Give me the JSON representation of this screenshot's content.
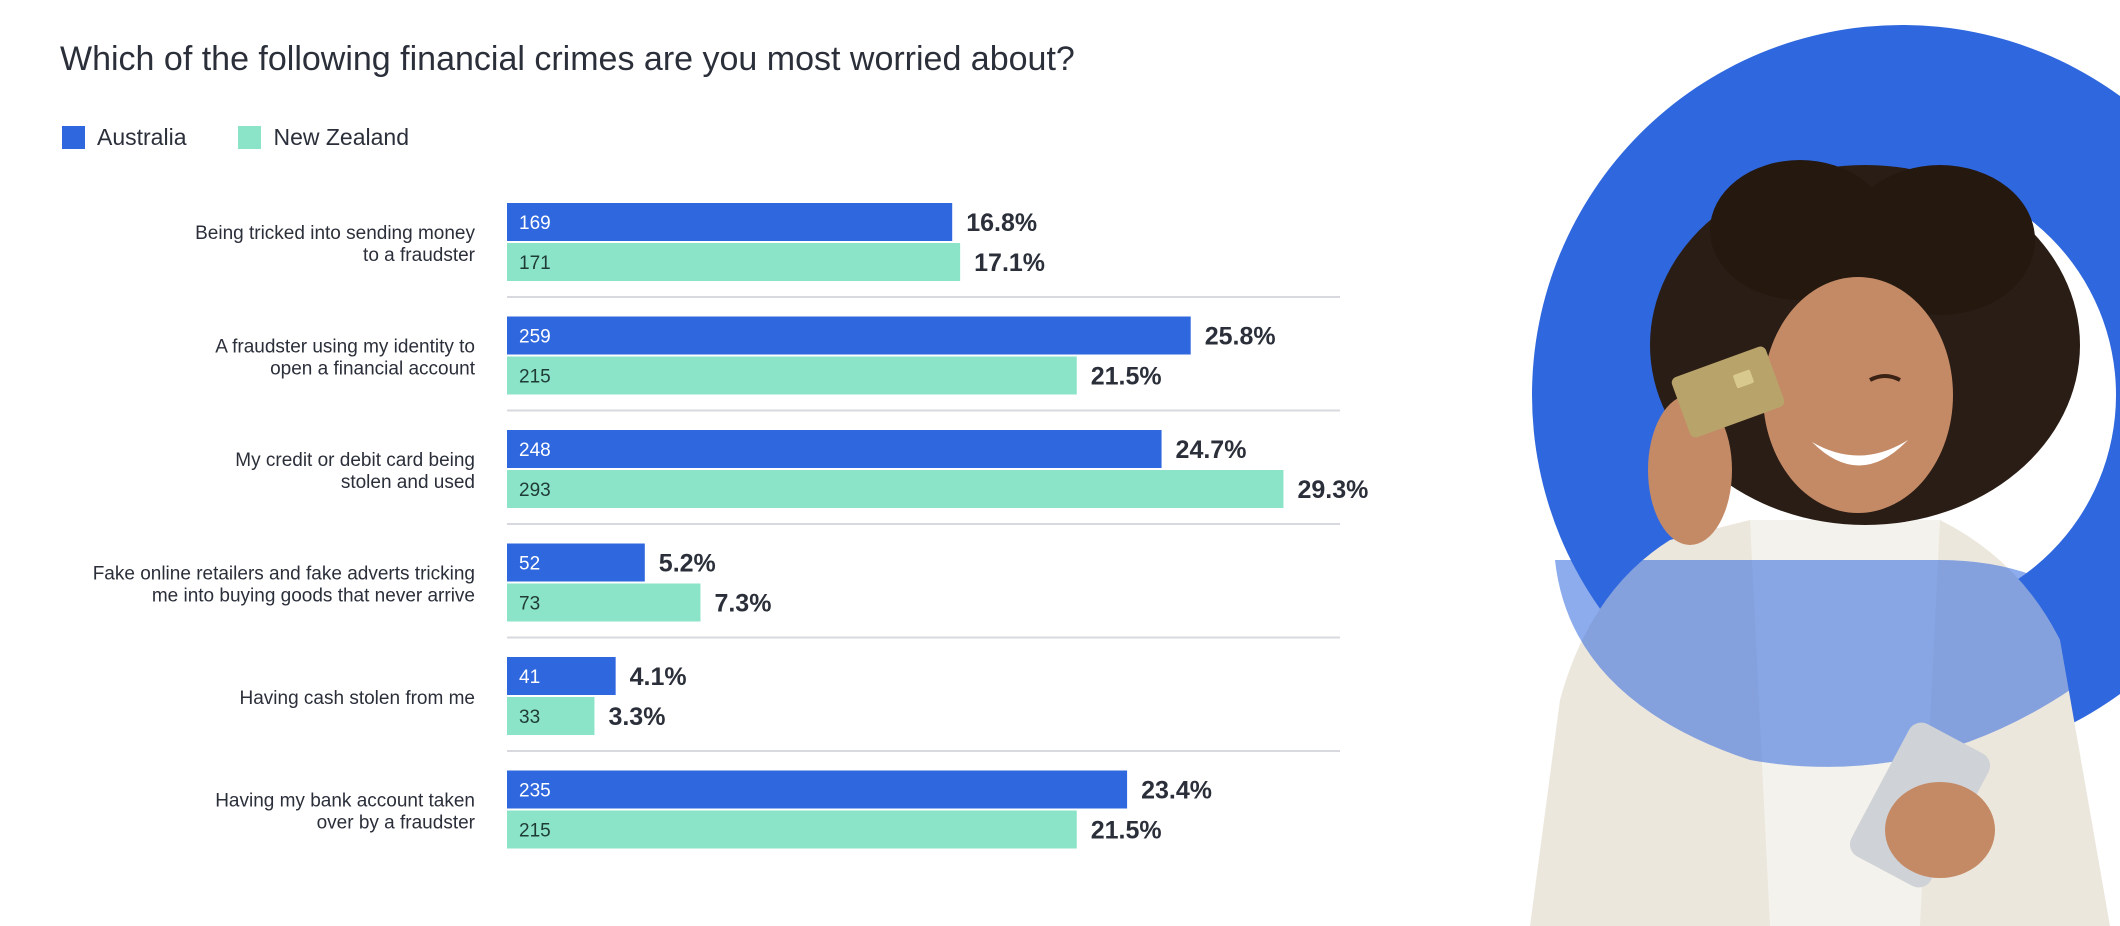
{
  "colors": {
    "australia": "#2f67de",
    "new_zealand": "#8be3c8",
    "separator": "#d7d9de",
    "label_text": "#2b2f3a",
    "value_text": "#ffffff"
  },
  "chart_data": {
    "type": "bar",
    "orientation": "horizontal",
    "title": "Which of the following financial crimes are you most worried about?",
    "legend_position": "top-left",
    "grid": false,
    "xlim": [
      0,
      30
    ],
    "categories": [
      [
        "Being tricked into sending money",
        "to a fraudster"
      ],
      [
        "A fraudster using my identity to",
        "open a financial account"
      ],
      [
        "My credit or debit card being",
        "stolen and used"
      ],
      [
        "Fake online retailers and fake adverts tricking",
        "me into buying goods that never arrive"
      ],
      [
        "Having cash stolen from me"
      ],
      [
        "Having my bank account taken",
        "over by a fraudster"
      ]
    ],
    "series": [
      {
        "name": "Australia",
        "color": "#2f67de",
        "counts": [
          169,
          259,
          248,
          52,
          41,
          235
        ],
        "values": [
          16.8,
          25.8,
          24.7,
          5.2,
          4.1,
          23.4
        ],
        "labels": [
          "16.8%",
          "25.8%",
          "24.7%",
          "5.2%",
          "4.1%",
          "23.4%"
        ]
      },
      {
        "name": "New Zealand",
        "color": "#8be3c8",
        "counts": [
          171,
          215,
          293,
          73,
          33,
          215
        ],
        "values": [
          17.1,
          21.5,
          29.3,
          7.3,
          3.3,
          21.5
        ],
        "labels": [
          "17.1%",
          "21.5%",
          "29.3%",
          "7.3%",
          "3.3%",
          "21.5%"
        ]
      }
    ]
  }
}
